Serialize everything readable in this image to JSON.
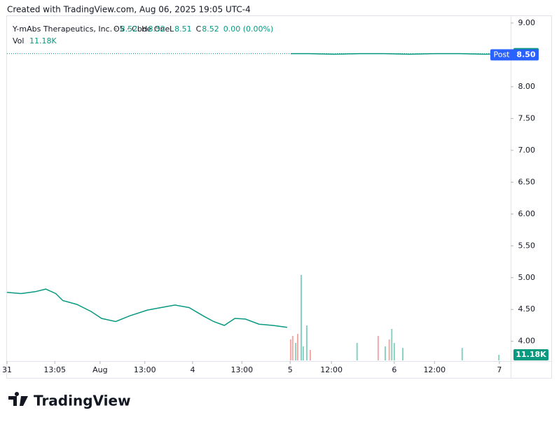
{
  "header": "Created with TradingView.com, Aug 06, 2025 19:05 UTC-4",
  "brand": "TradingView",
  "chart_data": {
    "type": "line",
    "title": "Y-mAbs Therapeutics, Inc. · 5 · Cboe One",
    "ohlc": [
      {
        "label": "O",
        "value": 8.52
      },
      {
        "label": "H",
        "value": 8.52
      },
      {
        "label": "L",
        "value": 8.51
      },
      {
        "label": "C",
        "value": 8.52
      }
    ],
    "change": "0.00 (0.00%)",
    "x": [
      0,
      2.8,
      5.6,
      7.7,
      9.7,
      11.1,
      13.9,
      16.7,
      18.8,
      21.6,
      24.4,
      27.9,
      30.6,
      33.4,
      36.2,
      39.0,
      41.1,
      43.2,
      45.3,
      47.4,
      50.1,
      52.9,
      55.7,
      56.0,
      56.4,
      60,
      65,
      70,
      75,
      80,
      85,
      90,
      95,
      100
    ],
    "series": [
      {
        "color": "#089981",
        "values": [
          4.77,
          4.75,
          4.78,
          4.82,
          4.75,
          4.64,
          4.58,
          4.47,
          4.36,
          4.31,
          4.4,
          4.49,
          4.53,
          4.57,
          4.53,
          4.4,
          4.31,
          4.25,
          4.36,
          4.35,
          4.27,
          4.25,
          4.22,
          null,
          8.52,
          8.52,
          8.51,
          8.52,
          8.52,
          8.51,
          8.52,
          8.52,
          8.51,
          8.52
        ]
      }
    ],
    "xlim": [
      0,
      100
    ],
    "xticks": [
      {
        "value": 0,
        "label": "31"
      },
      {
        "value": 9.5,
        "label": "13:05"
      },
      {
        "value": 18.5,
        "label": "Aug"
      },
      {
        "value": 27.4,
        "label": "13:00"
      },
      {
        "value": 36.9,
        "label": "4"
      },
      {
        "value": 46.7,
        "label": "13:00"
      },
      {
        "value": 56.3,
        "label": "5"
      },
      {
        "value": 64.5,
        "label": "12:00"
      },
      {
        "value": 77,
        "label": "6"
      },
      {
        "value": 85,
        "label": "12:00"
      },
      {
        "value": 97.9,
        "label": "7"
      }
    ],
    "ylim": [
      3.7,
      9.12
    ],
    "yticks": [
      {
        "value": 4,
        "label": "4.00"
      },
      {
        "value": 4.5,
        "label": "4.50"
      },
      {
        "value": 5,
        "label": "5.00"
      },
      {
        "value": 5.5,
        "label": "5.50"
      },
      {
        "value": 6,
        "label": "6.00"
      },
      {
        "value": 6.5,
        "label": "6.50"
      },
      {
        "value": 7,
        "label": "7.00"
      },
      {
        "value": 7.5,
        "label": "7.50"
      },
      {
        "value": 8,
        "label": "8.00"
      },
      {
        "value": 8.5,
        "label": "8.50"
      },
      {
        "value": 9,
        "label": "9.00"
      }
    ],
    "last_price": 8.52,
    "last_color": "#089981",
    "post_tag": "Post",
    "post_price": {
      "value": 8.5,
      "label": "8.50"
    },
    "post_color": "#2962ff",
    "volume": {
      "name": "Vol",
      "last_label": "11.18K",
      "x": [
        56.4,
        56.8,
        57.4,
        57.8,
        58.5,
        58.9,
        59.6,
        60.3,
        69.6,
        73.8,
        75.2,
        76.0,
        76.5,
        77.0,
        78.7,
        90.5,
        97.8
      ],
      "values": [
        42,
        49,
        35,
        53,
        171,
        28,
        70,
        21,
        35,
        49,
        28,
        42,
        63,
        35,
        25,
        25,
        11.18
      ],
      "colors": [
        "#f7a9a7",
        "#f7a9a7",
        "#89d1c3",
        "#f7a9a7",
        "#89d1c3",
        "#89d1c3",
        "#89d1c3",
        "#f7a9a7",
        "#89d1c3",
        "#f7a9a7",
        "#89d1c3",
        "#f7a9a7",
        "#89d1c3",
        "#89d1c3",
        "#89d1c3",
        "#89d1c3",
        "#89d1c3"
      ],
      "vol_lim": [
        0,
        690
      ]
    }
  }
}
